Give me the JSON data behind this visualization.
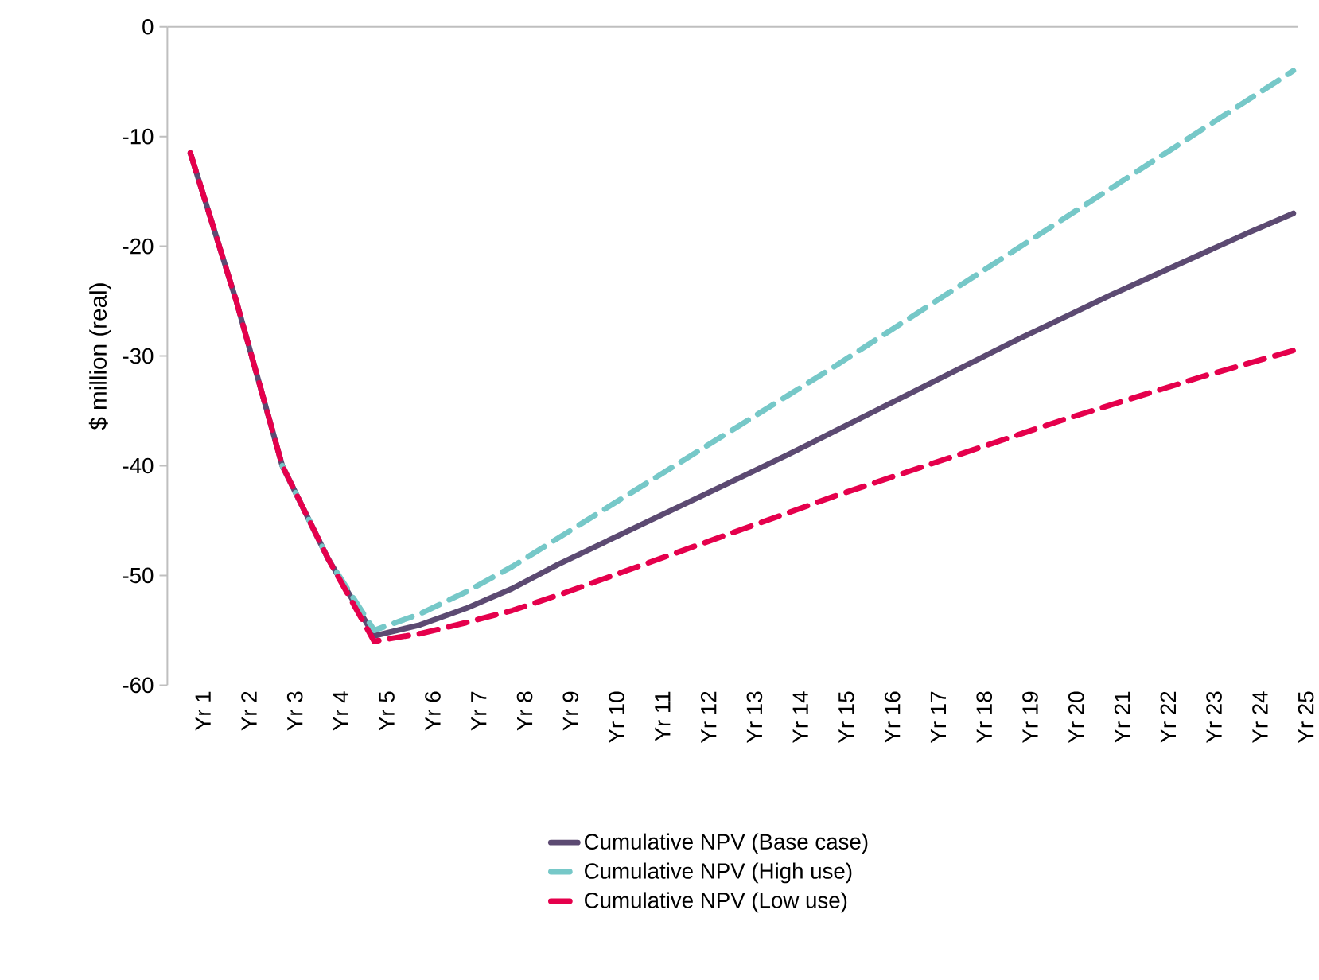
{
  "chart_data": {
    "type": "line",
    "ylabel": "$ million (real)",
    "categories": [
      "Yr 1",
      "Yr 2",
      "Yr 3",
      "Yr 4",
      "Yr 5",
      "Yr 6",
      "Yr 7",
      "Yr 8",
      "Yr 9",
      "Yr 10",
      "Yr 11",
      "Yr 12",
      "Yr 13",
      "Yr 14",
      "Yr 15",
      "Yr 16",
      "Yr 17",
      "Yr 18",
      "Yr 19",
      "Yr 20",
      "Yr 21",
      "Yr 22",
      "Yr 23",
      "Yr 24",
      "Yr 25"
    ],
    "ylim": [
      -60,
      0
    ],
    "yticks": [
      -60,
      -50,
      -40,
      -30,
      -20,
      -10,
      0
    ],
    "grid": false,
    "legend": "bottom",
    "marker": "none",
    "series": [
      {
        "name": "Cumulative NPV (Base case)",
        "color": "#5c4a72",
        "line_style": "solid",
        "values": [
          -11.5,
          -25,
          -40,
          -48.5,
          -55.5,
          -54.5,
          -53,
          -51.2,
          -49,
          -47,
          -45,
          -43,
          -41,
          -39,
          -36.9,
          -34.8,
          -32.7,
          -30.6,
          -28.5,
          -26.5,
          -24.5,
          -22.6,
          -20.7,
          -18.8,
          -17
        ]
      },
      {
        "name": "Cumulative NPV (High use)",
        "color": "#76c8c8",
        "line_style": "dashed",
        "values": [
          null,
          null,
          -40,
          -48.5,
          -55,
          -53.5,
          -51.5,
          -49.2,
          -46.6,
          -44,
          -41.4,
          -38.8,
          -36.2,
          -33.6,
          -31,
          -28.3,
          -25.6,
          -22.9,
          -20.2,
          -17.5,
          -14.8,
          -12.1,
          -9.4,
          -6.7,
          -4
        ]
      },
      {
        "name": "Cumulative NPV (Low use)",
        "color": "#e5004c",
        "line_style": "dashed",
        "values": [
          -11.5,
          -25,
          -40,
          -48.5,
          -56,
          -55.3,
          -54.3,
          -53.2,
          -51.8,
          -50.3,
          -48.8,
          -47.3,
          -45.8,
          -44.3,
          -42.8,
          -41.4,
          -40,
          -38.6,
          -37.2,
          -35.8,
          -34.5,
          -33.2,
          -31.9,
          -30.7,
          -29.5
        ]
      }
    ]
  }
}
